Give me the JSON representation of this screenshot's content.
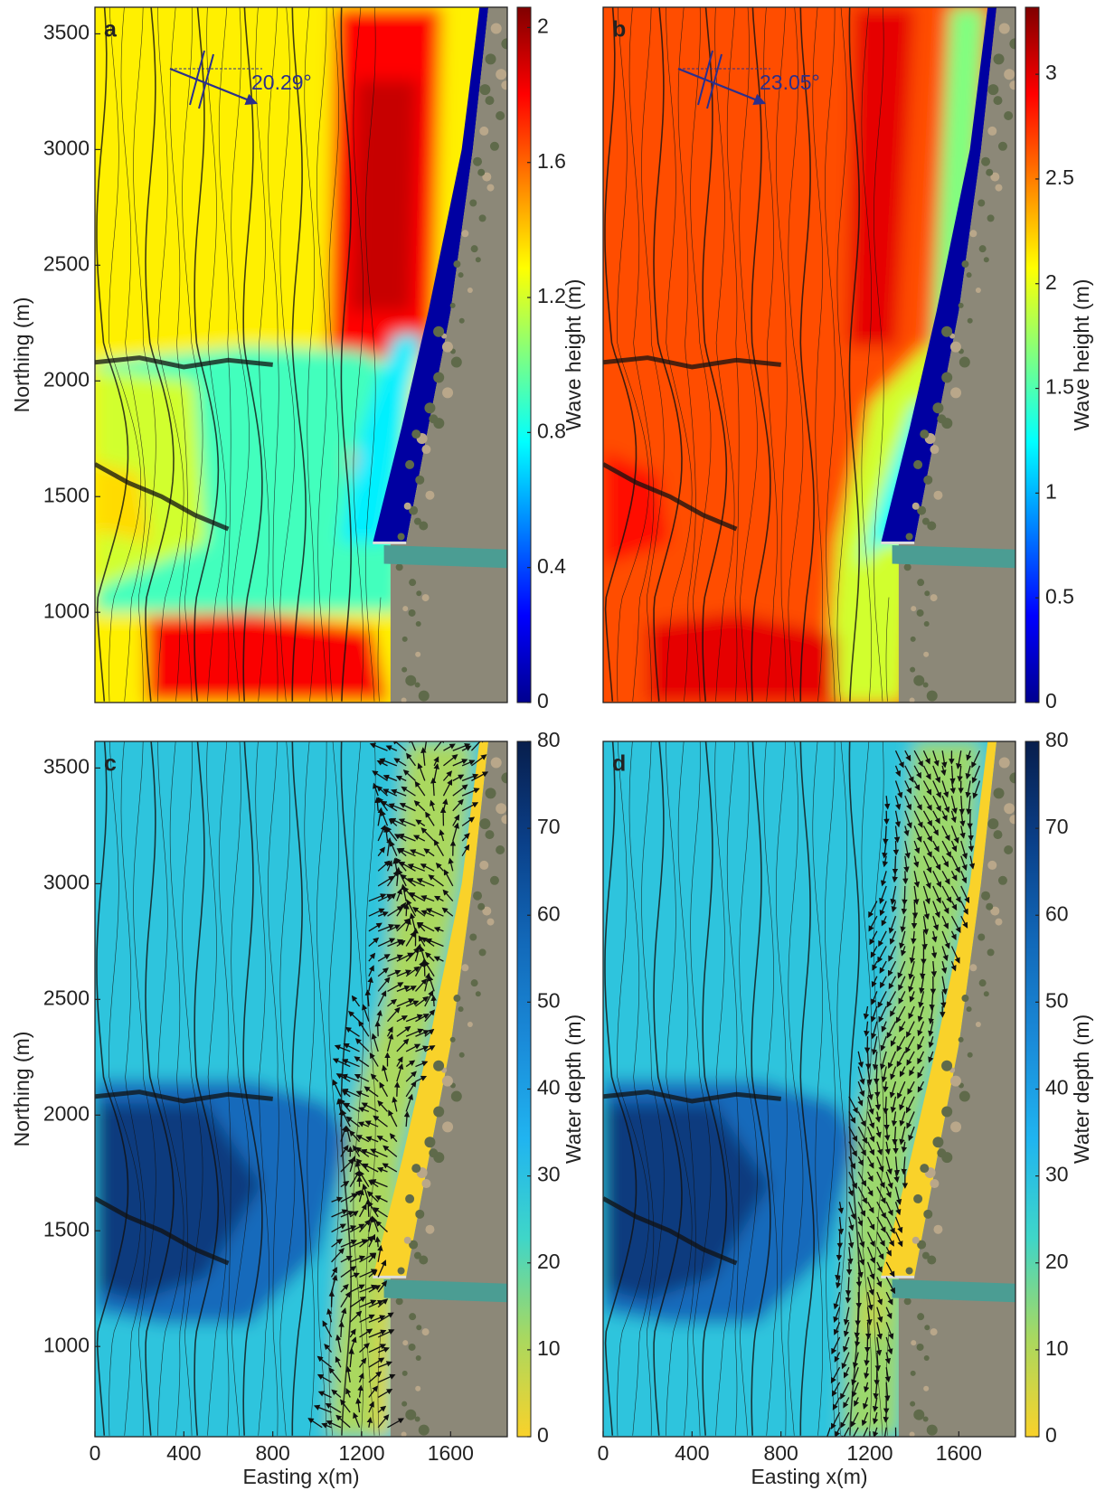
{
  "chart_data": [
    {
      "type": "map",
      "label": "a",
      "xlim": [
        0,
        1855
      ],
      "ylim": [
        610,
        3615
      ],
      "yticks": [
        1000,
        1500,
        2000,
        2500,
        3000,
        3500
      ],
      "ylabel": "Northing (m)",
      "annotation": "20.29°",
      "colorbar": {
        "label": "Wave height (m)",
        "lim": [
          0,
          2.06
        ],
        "ticks": [
          0,
          0.4,
          0.8,
          1.2,
          1.6,
          2
        ],
        "colors": [
          "#00008f",
          "#0000ff",
          "#0080ff",
          "#00ffff",
          "#80ff80",
          "#ffff00",
          "#ff8000",
          "#ff0000",
          "#800000"
        ]
      }
    },
    {
      "type": "map",
      "label": "b",
      "xlim": [
        0,
        1855
      ],
      "ylim": [
        610,
        3615
      ],
      "annotation": "23.05°",
      "colorbar": {
        "label": "Wave height (m)",
        "lim": [
          0,
          3.32
        ],
        "ticks": [
          0,
          0.5,
          1,
          1.5,
          2,
          2.5,
          3
        ],
        "colors": [
          "#00008f",
          "#0000ff",
          "#0080ff",
          "#00ffff",
          "#80ff80",
          "#ffff00",
          "#ff8000",
          "#ff0000",
          "#800000"
        ]
      }
    },
    {
      "type": "map",
      "label": "c",
      "xlim": [
        0,
        1855
      ],
      "ylim": [
        610,
        3615
      ],
      "xticks": [
        0,
        400,
        800,
        1200,
        1600
      ],
      "xlabel": "Easting x(m)",
      "yticks": [
        1000,
        1500,
        2000,
        2500,
        3000,
        3500
      ],
      "ylabel": "Northing (m)",
      "colorbar": {
        "label": "Water depth (m)",
        "lim": [
          0,
          80
        ],
        "ticks": [
          0,
          10,
          20,
          30,
          40,
          50,
          60,
          70,
          80
        ],
        "colors": [
          "#f9d22a",
          "#a8d860",
          "#3fd6c8",
          "#20b4f0",
          "#1a8ad8",
          "#1268b8",
          "#0a3f88",
          "#081e4c"
        ]
      }
    },
    {
      "type": "map",
      "label": "d",
      "xlim": [
        0,
        1855
      ],
      "ylim": [
        610,
        3615
      ],
      "xticks": [
        0,
        400,
        800,
        1200,
        1600
      ],
      "xlabel": "Easting x(m)",
      "colorbar": {
        "label": "Water depth (m)",
        "lim": [
          0,
          80
        ],
        "ticks": [
          0,
          10,
          20,
          30,
          40,
          50,
          60,
          70,
          80
        ],
        "colors": [
          "#f9d22a",
          "#a8d860",
          "#3fd6c8",
          "#20b4f0",
          "#1a8ad8",
          "#1268b8",
          "#0a3f88",
          "#081e4c"
        ]
      }
    }
  ]
}
